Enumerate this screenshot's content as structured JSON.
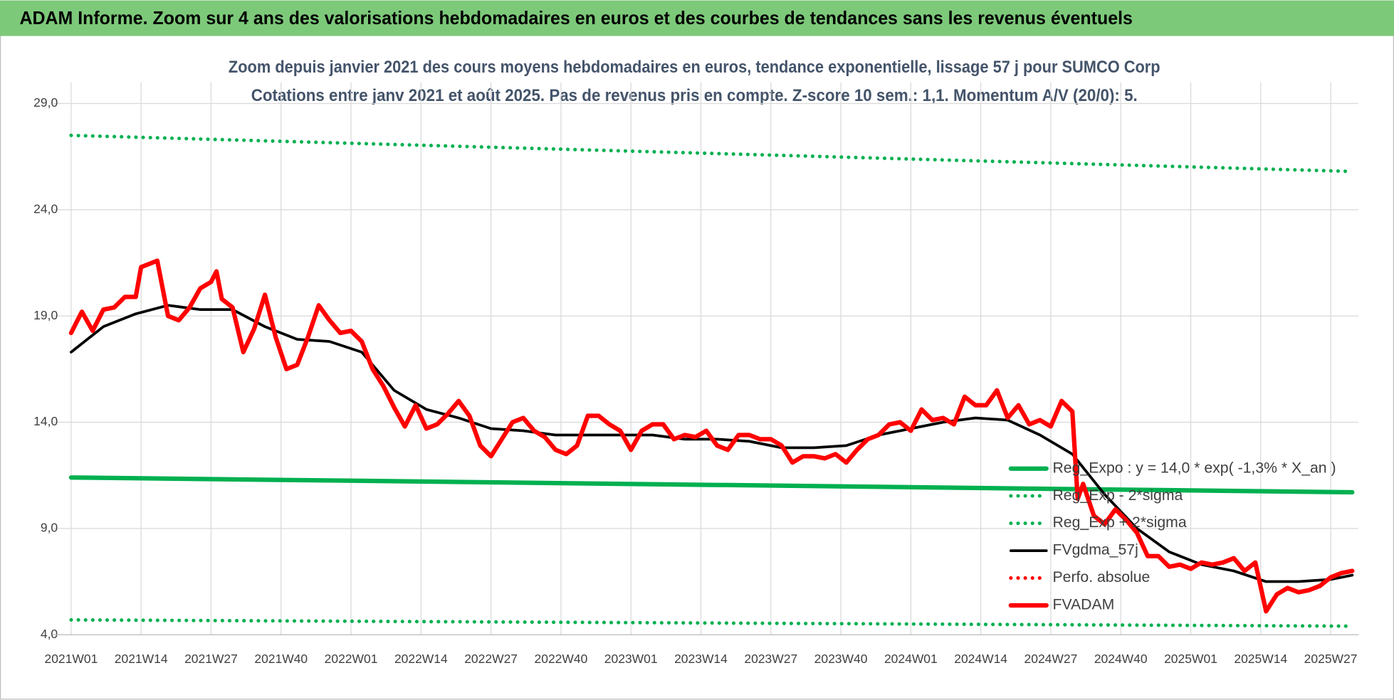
{
  "chart_data": {
    "type": "line",
    "header": "ADAM Informe. Zoom sur 4 ans des valorisations hebdomadaires en euros et des courbes de tendances sans les revenus éventuels",
    "title": "Zoom depuis janvier 2021 des cours moyens hebdomadaires en euros, tendance exponentielle, lissage 57 j pour SUMCO Corp",
    "subtitle": "Cotations entre janv 2021 et août 2025.  Pas de revenus pris en compte. Z-score 10 sem.: 1,1. Momentum A/V (20/0): 5.",
    "xlim": [
      0,
      238
    ],
    "xticks": [
      {
        "value": 0,
        "label": "2021W01"
      },
      {
        "value": 13,
        "label": "2021W14"
      },
      {
        "value": 26,
        "label": "2021W27"
      },
      {
        "value": 39,
        "label": "2021W40"
      },
      {
        "value": 52,
        "label": "2022W01"
      },
      {
        "value": 65,
        "label": "2022W14"
      },
      {
        "value": 78,
        "label": "2022W27"
      },
      {
        "value": 91,
        "label": "2022W40"
      },
      {
        "value": 104,
        "label": "2023W01"
      },
      {
        "value": 117,
        "label": "2023W14"
      },
      {
        "value": 130,
        "label": "2023W27"
      },
      {
        "value": 143,
        "label": "2023W40"
      },
      {
        "value": 156,
        "label": "2024W01"
      },
      {
        "value": 169,
        "label": "2024W14"
      },
      {
        "value": 182,
        "label": "2024W27"
      },
      {
        "value": 195,
        "label": "2024W40"
      },
      {
        "value": 208,
        "label": "2025W01"
      },
      {
        "value": 221,
        "label": "2025W14"
      },
      {
        "value": 234,
        "label": "2025W27"
      }
    ],
    "ylim": [
      4,
      29
    ],
    "yticks": [
      {
        "value": 4,
        "label": "4,0"
      },
      {
        "value": 9,
        "label": "9,0"
      },
      {
        "value": 14,
        "label": "14,0"
      },
      {
        "value": 19,
        "label": "19,0"
      },
      {
        "value": 24,
        "label": "24,0"
      },
      {
        "value": 29,
        "label": "29,0"
      }
    ],
    "grid": true,
    "legend": "lower-right",
    "series": [
      {
        "name": "Reg_Expo : y = 14,0 * exp( -1,3% *  X_an )",
        "color": "#00b050",
        "style": "solid",
        "x": [
          0,
          238
        ],
        "values": [
          11.4,
          10.7
        ]
      },
      {
        "name": "Reg_Exp - 2*sigma",
        "color": "#00b050",
        "style": "dotted",
        "x": [
          0,
          238
        ],
        "values": [
          4.7,
          4.4
        ]
      },
      {
        "name": "Reg_Exp + 2*sigma",
        "color": "#00b050",
        "style": "dotted",
        "x": [
          0,
          238
        ],
        "values": [
          27.5,
          25.8
        ]
      },
      {
        "name": "FVgdma_57j",
        "color": "#000000",
        "style": "solid",
        "x": [
          0,
          6,
          12,
          18,
          24,
          30,
          36,
          42,
          48,
          54,
          60,
          66,
          72,
          78,
          84,
          90,
          96,
          102,
          108,
          114,
          120,
          126,
          132,
          138,
          144,
          150,
          156,
          162,
          168,
          174,
          180,
          186,
          192,
          198,
          204,
          210,
          216,
          222,
          228,
          234,
          238
        ],
        "values": [
          17.3,
          18.5,
          19.1,
          19.5,
          19.3,
          19.3,
          18.5,
          17.9,
          17.8,
          17.3,
          15.5,
          14.6,
          14.2,
          13.7,
          13.6,
          13.4,
          13.4,
          13.4,
          13.4,
          13.2,
          13.2,
          13.1,
          12.8,
          12.8,
          12.9,
          13.4,
          13.7,
          14.0,
          14.2,
          14.1,
          13.4,
          12.5,
          10.6,
          9.0,
          7.9,
          7.3,
          7.0,
          6.5,
          6.5,
          6.6,
          6.8
        ]
      },
      {
        "name": "Perfo. absolue",
        "color": "#ff0000",
        "style": "dotted",
        "x": [],
        "values": []
      },
      {
        "name": "FVADAM",
        "color": "#ff0000",
        "style": "solid",
        "x": [
          0,
          2,
          4,
          6,
          8,
          10,
          12,
          13,
          16,
          18,
          20,
          22,
          24,
          26,
          27,
          28,
          30,
          32,
          34,
          36,
          38,
          40,
          42,
          44,
          46,
          48,
          50,
          52,
          54,
          56,
          58,
          60,
          62,
          64,
          66,
          68,
          70,
          72,
          74,
          76,
          78,
          80,
          82,
          84,
          86,
          88,
          90,
          92,
          94,
          96,
          98,
          100,
          102,
          104,
          106,
          108,
          110,
          112,
          114,
          116,
          118,
          120,
          122,
          124,
          126,
          128,
          130,
          132,
          134,
          136,
          138,
          140,
          142,
          144,
          146,
          148,
          150,
          152,
          154,
          156,
          158,
          160,
          162,
          164,
          166,
          168,
          170,
          172,
          174,
          176,
          178,
          180,
          182,
          184,
          186,
          187,
          188,
          190,
          192,
          194,
          196,
          198,
          200,
          202,
          204,
          206,
          208,
          210,
          212,
          214,
          216,
          218,
          220,
          222,
          224,
          226,
          228,
          230,
          232,
          234,
          236,
          238
        ],
        "values": [
          18.2,
          19.2,
          18.3,
          19.3,
          19.4,
          19.9,
          19.9,
          21.3,
          21.6,
          19.0,
          18.8,
          19.4,
          20.3,
          20.6,
          21.1,
          19.8,
          19.4,
          17.3,
          18.4,
          20.0,
          18.0,
          16.5,
          16.7,
          18.0,
          19.5,
          18.8,
          18.2,
          18.3,
          17.8,
          16.5,
          15.7,
          14.7,
          13.8,
          14.8,
          13.7,
          13.9,
          14.4,
          15.0,
          14.3,
          12.9,
          12.4,
          13.2,
          14.0,
          14.2,
          13.6,
          13.3,
          12.7,
          12.5,
          12.9,
          14.3,
          14.3,
          13.9,
          13.6,
          12.7,
          13.6,
          13.9,
          13.9,
          13.2,
          13.4,
          13.3,
          13.6,
          12.9,
          12.7,
          13.4,
          13.4,
          13.2,
          13.2,
          12.9,
          12.1,
          12.4,
          12.4,
          12.3,
          12.5,
          12.1,
          12.7,
          13.2,
          13.4,
          13.9,
          14.0,
          13.6,
          14.6,
          14.1,
          14.2,
          13.9,
          15.2,
          14.8,
          14.8,
          15.5,
          14.2,
          14.8,
          13.9,
          14.1,
          13.8,
          15.0,
          14.5,
          10.4,
          11.1,
          9.6,
          9.2,
          9.9,
          9.4,
          8.8,
          7.7,
          7.7,
          7.2,
          7.3,
          7.1,
          7.4,
          7.3,
          7.4,
          7.6,
          7.0,
          7.4,
          5.1,
          5.9,
          6.2,
          6.0,
          6.1,
          6.3,
          6.7,
          6.9,
          7.0
        ]
      }
    ]
  }
}
